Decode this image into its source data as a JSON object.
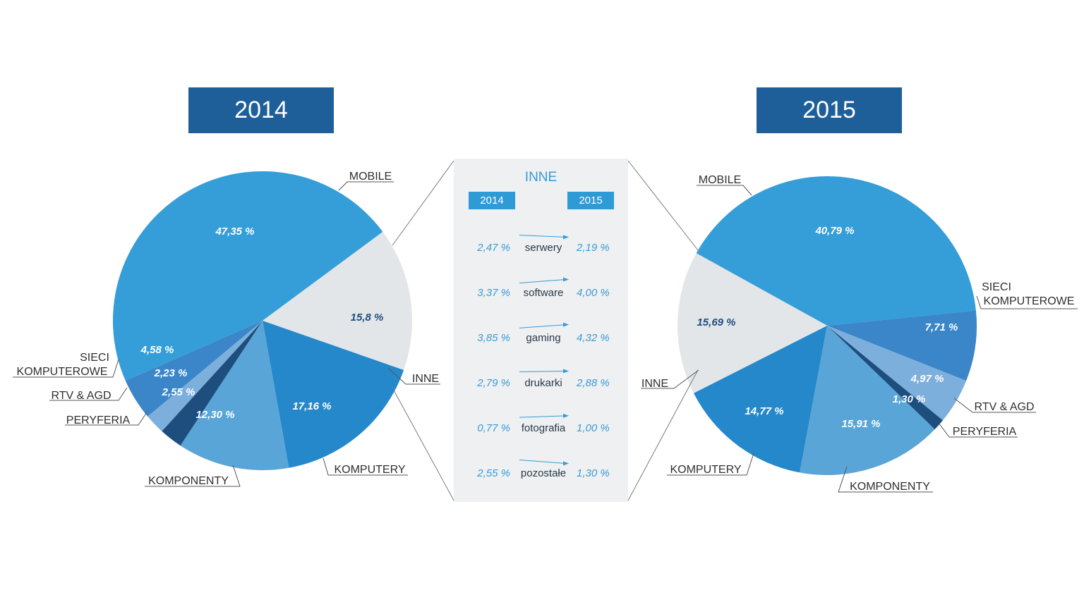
{
  "chart_data": [
    {
      "type": "pie",
      "title": "2014",
      "labels": [
        "MOBILE",
        "INNE",
        "KOMPUTERY",
        "KOMPONENTY",
        "PERYFERIA",
        "RTV & AGD",
        "SIECI KOMPUTEROWE"
      ],
      "values": [
        47.35,
        15.8,
        17.16,
        12.3,
        2.55,
        2.23,
        4.58
      ],
      "value_labels": [
        "47,35 %",
        "15,8 %",
        "17,16 %",
        "12,30 %",
        "2,55 %",
        "2,23 %",
        "4,58 %"
      ],
      "colors": [
        "#359ed8",
        "#e3e6e8",
        "#2588cb",
        "#5aa5d7",
        "#1d4e7e",
        "#7dafdc",
        "#3a86c8"
      ]
    },
    {
      "type": "pie",
      "title": "2015",
      "labels": [
        "MOBILE",
        "SIECI KOMPUTEROWE",
        "RTV & AGD",
        "PERYFERIA",
        "KOMPONENTY",
        "KOMPUTERY",
        "INNE"
      ],
      "values": [
        40.79,
        7.71,
        4.97,
        1.3,
        15.91,
        14.77,
        15.69
      ],
      "value_labels": [
        "40,79 %",
        "7,71 %",
        "4,97 %",
        "1,30 %",
        "15,91 %",
        "14,77 %",
        "15,69 %"
      ],
      "colors": [
        "#359ed8",
        "#3a86c8",
        "#7dafdc",
        "#1d4e7e",
        "#5aa5d7",
        "#2588cb",
        "#e3e6e8"
      ]
    },
    {
      "type": "table",
      "title": "INNE",
      "columns": [
        "2014",
        "2015"
      ],
      "rows": [
        {
          "category": "serwery",
          "v2014": "2,47 %",
          "v2015": "2,19 %"
        },
        {
          "category": "software",
          "v2014": "3,37 %",
          "v2015": "4,00 %"
        },
        {
          "category": "gaming",
          "v2014": "3,85 %",
          "v2015": "4,32 %"
        },
        {
          "category": "drukarki",
          "v2014": "2,79 %",
          "v2015": "2,88 %"
        },
        {
          "category": "fotografia",
          "v2014": "0,77 %",
          "v2015": "1,00 %"
        },
        {
          "category": "pozostałe",
          "v2014": "2,55 %",
          "v2015": "1,30 %"
        }
      ]
    }
  ],
  "labels2014": {
    "mobile": "MOBILE",
    "inne": "INNE",
    "komputery": "KOMPUTERY",
    "komponenty": "KOMPONENTY",
    "peryferia": "PERYFERIA",
    "rtv": "RTV & AGD",
    "sieci1": "SIECI",
    "sieci2": "KOMPUTEROWE"
  },
  "labels2015": {
    "mobile": "MOBILE",
    "inne": "INNE",
    "komputery": "KOMPUTERY",
    "komponenty": "KOMPONENTY",
    "peryferia": "PERYFERIA",
    "rtv": "RTV & AGD",
    "sieci1": "SIECI",
    "sieci2": "KOMPUTEROWE"
  }
}
